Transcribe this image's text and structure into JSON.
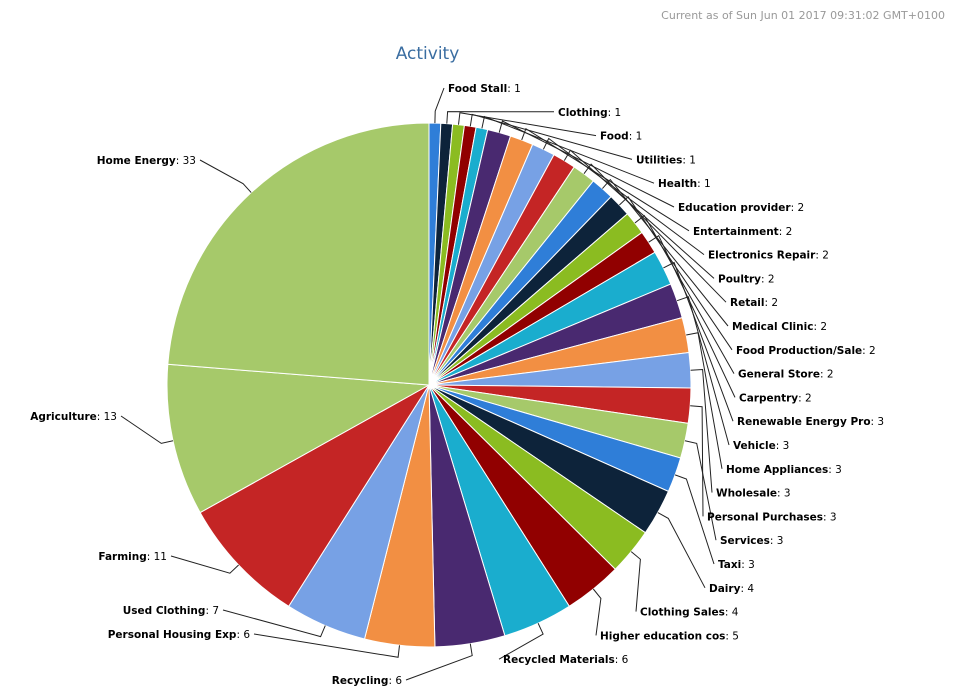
{
  "header": {
    "timestamp": "Current as of Sun Jun 01 2017 09:31:02 GMT+0100"
  },
  "chart_data": {
    "type": "pie",
    "title": "Activity",
    "slices": [
      {
        "label": "Food Stall",
        "value": 1,
        "color": "#2f7ed8",
        "side": "right"
      },
      {
        "label": "Clothing",
        "value": 1,
        "color": "#0d233a",
        "side": "right"
      },
      {
        "label": "Food",
        "value": 1,
        "color": "#8bbc21",
        "side": "right"
      },
      {
        "label": "Utilities",
        "value": 1,
        "color": "#910000",
        "side": "right"
      },
      {
        "label": "Health",
        "value": 1,
        "color": "#1aadce",
        "side": "right"
      },
      {
        "label": "Education provider",
        "value": 2,
        "color": "#492970",
        "side": "right"
      },
      {
        "label": "Entertainment",
        "value": 2,
        "color": "#f28f43",
        "side": "right"
      },
      {
        "label": "Electronics Repair",
        "value": 2,
        "color": "#77a1e5",
        "side": "right"
      },
      {
        "label": "Poultry",
        "value": 2,
        "color": "#c42525",
        "side": "right"
      },
      {
        "label": "Retail",
        "value": 2,
        "color": "#a6c96a",
        "side": "right"
      },
      {
        "label": "Medical Clinic",
        "value": 2,
        "color": "#2f7ed8",
        "side": "right"
      },
      {
        "label": "Food Production/Sale",
        "value": 2,
        "color": "#0d233a",
        "side": "right"
      },
      {
        "label": "General Store",
        "value": 2,
        "color": "#8bbc21",
        "side": "right"
      },
      {
        "label": "Carpentry",
        "value": 2,
        "color": "#910000",
        "side": "right"
      },
      {
        "label": "Renewable Energy Pro",
        "value": 3,
        "color": "#1aadce",
        "side": "right"
      },
      {
        "label": "Vehicle",
        "value": 3,
        "color": "#492970",
        "side": "right"
      },
      {
        "label": "Home Appliances",
        "value": 3,
        "color": "#f28f43",
        "side": "right"
      },
      {
        "label": "Wholesale",
        "value": 3,
        "color": "#77a1e5",
        "side": "right"
      },
      {
        "label": "Personal Purchases",
        "value": 3,
        "color": "#c42525",
        "side": "right"
      },
      {
        "label": "Services",
        "value": 3,
        "color": "#a6c96a",
        "side": "right"
      },
      {
        "label": "Taxi",
        "value": 3,
        "color": "#2f7ed8",
        "side": "right"
      },
      {
        "label": "Dairy",
        "value": 4,
        "color": "#0d233a",
        "side": "right"
      },
      {
        "label": "Clothing Sales",
        "value": 4,
        "color": "#8bbc21",
        "side": "right"
      },
      {
        "label": "Higher education cos",
        "value": 5,
        "color": "#910000",
        "side": "right"
      },
      {
        "label": "Recycled Materials",
        "value": 6,
        "color": "#1aadce",
        "side": "right"
      },
      {
        "label": "Recycling",
        "value": 6,
        "color": "#492970",
        "side": "left"
      },
      {
        "label": "Personal Housing Exp",
        "value": 6,
        "color": "#f28f43",
        "side": "left"
      },
      {
        "label": "Used Clothing",
        "value": 7,
        "color": "#77a1e5",
        "side": "left"
      },
      {
        "label": "Farming",
        "value": 11,
        "color": "#c42525",
        "side": "left"
      },
      {
        "label": "Agriculture",
        "value": 13,
        "color": "#a6c96a",
        "side": "left"
      },
      {
        "label": "Home Energy",
        "value": 33,
        "color": "#a6c96a",
        "side": "left"
      }
    ]
  }
}
